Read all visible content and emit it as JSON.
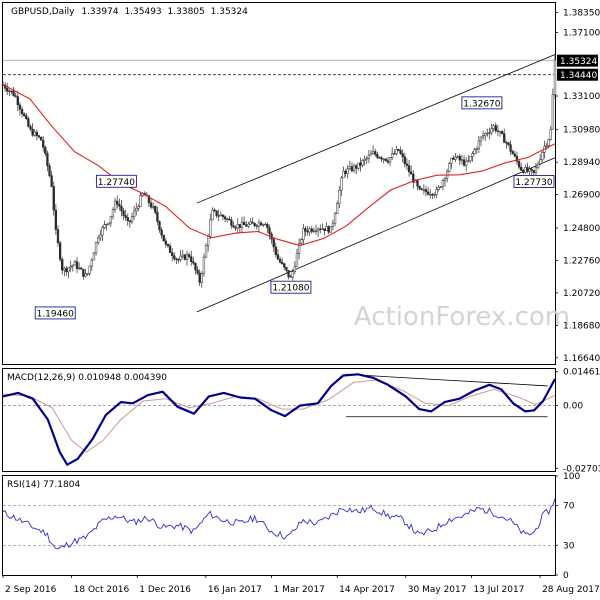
{
  "chart_data": {
    "type": "candlestick",
    "main": {
      "header": {
        "symbol": "GBPUSD",
        "timeframe": "Daily",
        "open": "1.33974",
        "high": "1.35493",
        "low": "1.33805",
        "close": "1.35324"
      },
      "y_range": [
        1.1625,
        1.3895
      ],
      "y_ticks": [
        "1.38350",
        "1.37100",
        "1.33100",
        "1.30980",
        "1.28940",
        "1.26900",
        "1.24800",
        "1.22760",
        "1.20720",
        "1.18680",
        "1.16640"
      ],
      "price_tags": [
        {
          "value": "1.35324",
          "price": 1.35324
        },
        {
          "value": "1.34440",
          "price": 1.3444
        }
      ],
      "annotations": [
        {
          "text": "1.27740",
          "date": "2016-11-17",
          "price": 1.2774
        },
        {
          "text": "1.19460",
          "date": "2016-10-07",
          "price": 1.1946
        },
        {
          "text": "1.21080",
          "date": "2017-03-14",
          "price": 1.2108
        },
        {
          "text": "1.32670",
          "date": "2017-07-20",
          "price": 1.3267
        },
        {
          "text": "1.27730",
          "date": "2017-08-24",
          "price": 1.2773
        }
      ],
      "horizontal_lines": [
        1.3444,
        1.3535
      ],
      "channel": {
        "upper": [
          [
            "2017-01-10",
            1.2637
          ],
          [
            "2017-09-07",
            1.3571
          ]
        ],
        "lower": [
          [
            "2017-01-10",
            1.1953
          ],
          [
            "2017-09-07",
            1.2922
          ]
        ]
      },
      "moving_average": [
        [
          "2016-09-02",
          1.3382
        ],
        [
          "2016-09-20",
          1.3292
        ],
        [
          "2016-10-05",
          1.3117
        ],
        [
          "2016-10-20",
          1.296
        ],
        [
          "2016-11-05",
          1.2872
        ],
        [
          "2016-11-20",
          1.2763
        ],
        [
          "2016-12-05",
          1.2695
        ],
        [
          "2016-12-20",
          1.2616
        ],
        [
          "2017-01-05",
          1.2479
        ],
        [
          "2017-01-20",
          1.2419
        ],
        [
          "2017-02-05",
          1.2448
        ],
        [
          "2017-02-20",
          1.2458
        ],
        [
          "2017-03-05",
          1.241
        ],
        [
          "2017-03-20",
          1.237
        ],
        [
          "2017-04-05",
          1.2415
        ],
        [
          "2017-04-20",
          1.2492
        ],
        [
          "2017-05-05",
          1.261
        ],
        [
          "2017-05-20",
          1.272
        ],
        [
          "2017-06-05",
          1.2779
        ],
        [
          "2017-06-20",
          1.2812
        ],
        [
          "2017-07-05",
          1.2815
        ],
        [
          "2017-07-20",
          1.2838
        ],
        [
          "2017-08-05",
          1.2891
        ],
        [
          "2017-08-20",
          1.2924
        ],
        [
          "2017-09-07",
          1.301
        ]
      ],
      "price_path": [
        [
          "2016-09-02",
          1.338
        ],
        [
          "2016-09-10",
          1.3315
        ],
        [
          "2016-09-20",
          1.3095
        ],
        [
          "2016-09-28",
          1.303
        ],
        [
          "2016-10-05",
          1.2735
        ],
        [
          "2016-10-07",
          1.2475
        ],
        [
          "2016-10-12",
          1.221
        ],
        [
          "2016-10-20",
          1.2255
        ],
        [
          "2016-10-28",
          1.217
        ],
        [
          "2016-11-05",
          1.244
        ],
        [
          "2016-11-12",
          1.253
        ],
        [
          "2016-11-17",
          1.2655
        ],
        [
          "2016-11-25",
          1.25
        ],
        [
          "2016-12-05",
          1.27
        ],
        [
          "2016-12-12",
          1.2595
        ],
        [
          "2016-12-20",
          1.237
        ],
        [
          "2016-12-28",
          1.228
        ],
        [
          "2017-01-05",
          1.231
        ],
        [
          "2017-01-12",
          1.214
        ],
        [
          "2017-01-20",
          1.258
        ],
        [
          "2017-01-28",
          1.255
        ],
        [
          "2017-02-05",
          1.2495
        ],
        [
          "2017-02-15",
          1.25
        ],
        [
          "2017-02-25",
          1.252
        ],
        [
          "2017-03-05",
          1.229
        ],
        [
          "2017-03-14",
          1.216
        ],
        [
          "2017-03-22",
          1.246
        ],
        [
          "2017-04-01",
          1.2485
        ],
        [
          "2017-04-10",
          1.247
        ],
        [
          "2017-04-18",
          1.283
        ],
        [
          "2017-04-28",
          1.287
        ],
        [
          "2017-05-08",
          1.295
        ],
        [
          "2017-05-18",
          1.291
        ],
        [
          "2017-05-25",
          1.297
        ],
        [
          "2017-06-08",
          1.271
        ],
        [
          "2017-06-20",
          1.2705
        ],
        [
          "2017-07-01",
          1.293
        ],
        [
          "2017-07-10",
          1.288
        ],
        [
          "2017-07-20",
          1.3055
        ],
        [
          "2017-07-28",
          1.312
        ],
        [
          "2017-08-05",
          1.3025
        ],
        [
          "2017-08-15",
          1.2855
        ],
        [
          "2017-08-24",
          1.282
        ],
        [
          "2017-08-30",
          1.2975
        ],
        [
          "2017-09-04",
          1.307
        ],
        [
          "2017-09-07",
          1.3532
        ]
      ]
    },
    "macd": {
      "label": "MACD(12,26,9) 0.010948 0.004390",
      "y_ticks": [
        "0.014614",
        "0.00",
        "-0.027031"
      ],
      "y_range": [
        -0.0282,
        0.0158
      ],
      "macd_line": [
        [
          "2016-09-02",
          0.004
        ],
        [
          "2016-09-12",
          0.0055
        ],
        [
          "2016-09-22",
          0.003
        ],
        [
          "2016-10-02",
          -0.006
        ],
        [
          "2016-10-10",
          -0.02
        ],
        [
          "2016-10-15",
          -0.0255
        ],
        [
          "2016-10-22",
          -0.023
        ],
        [
          "2016-11-01",
          -0.0145
        ],
        [
          "2016-11-10",
          -0.004
        ],
        [
          "2016-11-20",
          0.0015
        ],
        [
          "2016-11-28",
          0.001
        ],
        [
          "2016-12-08",
          0.0045
        ],
        [
          "2016-12-18",
          0.006
        ],
        [
          "2016-12-28",
          -0.0005
        ],
        [
          "2017-01-08",
          -0.0035
        ],
        [
          "2017-01-18",
          0.004
        ],
        [
          "2017-01-28",
          0.0055
        ],
        [
          "2017-02-08",
          0.0035
        ],
        [
          "2017-02-18",
          0.003
        ],
        [
          "2017-03-01",
          -0.002
        ],
        [
          "2017-03-10",
          -0.0045
        ],
        [
          "2017-03-20",
          0.0
        ],
        [
          "2017-04-01",
          0.001
        ],
        [
          "2017-04-10",
          0.0085
        ],
        [
          "2017-04-18",
          0.013
        ],
        [
          "2017-04-28",
          0.0135
        ],
        [
          "2017-05-08",
          0.012
        ],
        [
          "2017-05-18",
          0.009
        ],
        [
          "2017-05-30",
          0.004
        ],
        [
          "2017-06-08",
          -0.0015
        ],
        [
          "2017-06-16",
          -0.0025
        ],
        [
          "2017-06-25",
          0.0015
        ],
        [
          "2017-07-05",
          0.003
        ],
        [
          "2017-07-15",
          0.0065
        ],
        [
          "2017-07-25",
          0.009
        ],
        [
          "2017-08-02",
          0.007
        ],
        [
          "2017-08-10",
          0.001
        ],
        [
          "2017-08-18",
          -0.0025
        ],
        [
          "2017-08-24",
          -0.002
        ],
        [
          "2017-08-30",
          0.002
        ],
        [
          "2017-09-07",
          0.0115
        ]
      ],
      "signal_line": [
        [
          "2016-09-02",
          0.005
        ],
        [
          "2016-09-20",
          0.004
        ],
        [
          "2016-10-05",
          -0.001
        ],
        [
          "2016-10-18",
          -0.015
        ],
        [
          "2016-10-28",
          -0.02
        ],
        [
          "2016-11-08",
          -0.015
        ],
        [
          "2016-11-20",
          -0.006
        ],
        [
          "2016-12-05",
          0.002
        ],
        [
          "2016-12-20",
          0.003
        ],
        [
          "2017-01-05",
          -0.001
        ],
        [
          "2017-01-20",
          0.001
        ],
        [
          "2017-02-05",
          0.004
        ],
        [
          "2017-02-20",
          0.003
        ],
        [
          "2017-03-08",
          -0.0015
        ],
        [
          "2017-03-22",
          -0.0015
        ],
        [
          "2017-04-08",
          0.0025
        ],
        [
          "2017-04-25",
          0.01
        ],
        [
          "2017-05-10",
          0.011
        ],
        [
          "2017-05-28",
          0.0065
        ],
        [
          "2017-06-12",
          0.001
        ],
        [
          "2017-06-28",
          0.0
        ],
        [
          "2017-07-12",
          0.004
        ],
        [
          "2017-07-28",
          0.007
        ],
        [
          "2017-08-12",
          0.004
        ],
        [
          "2017-08-25",
          0.0005
        ],
        [
          "2017-09-07",
          0.0044
        ]
      ],
      "trendlines": [
        [
          [
            "2017-04-20",
            0.0135
          ],
          [
            "2017-09-02",
            0.0085
          ]
        ],
        [
          [
            "2017-04-20",
            -0.0048
          ],
          [
            "2017-09-02",
            -0.0048
          ]
        ]
      ]
    },
    "rsi": {
      "label": "RSI(14) 77.1804",
      "y_ticks": [
        "100",
        "70",
        "30",
        "0"
      ],
      "y_range": [
        0,
        100
      ],
      "levels": [
        70,
        30
      ],
      "values": [
        [
          "2016-09-02",
          63
        ],
        [
          "2016-09-10",
          58
        ],
        [
          "2016-09-20",
          50
        ],
        [
          "2016-10-01",
          42
        ],
        [
          "2016-10-08",
          25
        ],
        [
          "2016-10-18",
          33
        ],
        [
          "2016-10-28",
          38
        ],
        [
          "2016-11-08",
          55
        ],
        [
          "2016-11-17",
          60
        ],
        [
          "2016-11-28",
          53
        ],
        [
          "2016-12-08",
          58
        ],
        [
          "2016-12-18",
          48
        ],
        [
          "2016-12-28",
          50
        ],
        [
          "2017-01-08",
          44
        ],
        [
          "2017-01-18",
          62
        ],
        [
          "2017-01-28",
          55
        ],
        [
          "2017-02-08",
          52
        ],
        [
          "2017-02-18",
          58
        ],
        [
          "2017-03-01",
          44
        ],
        [
          "2017-03-12",
          38
        ],
        [
          "2017-03-22",
          55
        ],
        [
          "2017-04-01",
          52
        ],
        [
          "2017-04-10",
          60
        ],
        [
          "2017-04-18",
          68
        ],
        [
          "2017-04-28",
          64
        ],
        [
          "2017-05-08",
          68
        ],
        [
          "2017-05-18",
          60
        ],
        [
          "2017-05-28",
          56
        ],
        [
          "2017-06-08",
          40
        ],
        [
          "2017-06-18",
          46
        ],
        [
          "2017-06-28",
          56
        ],
        [
          "2017-07-08",
          60
        ],
        [
          "2017-07-18",
          67
        ],
        [
          "2017-07-28",
          63
        ],
        [
          "2017-08-08",
          55
        ],
        [
          "2017-08-18",
          40
        ],
        [
          "2017-08-24",
          43
        ],
        [
          "2017-08-30",
          60
        ],
        [
          "2017-09-04",
          66
        ],
        [
          "2017-09-07",
          77
        ]
      ]
    },
    "x_axis": {
      "start_date": "2016-09-02",
      "end_date": "2017-09-07",
      "tick_labels": [
        {
          "label": "2 Sep 2016",
          "date": "2016-09-02"
        },
        {
          "label": "18 Oct 2016",
          "date": "2016-10-18"
        },
        {
          "label": "1 Dec 2016",
          "date": "2016-12-01"
        },
        {
          "label": "16 Jan 2017",
          "date": "2017-01-16"
        },
        {
          "label": "1 Mar 2017",
          "date": "2017-03-01"
        },
        {
          "label": "14 Apr 2017",
          "date": "2017-04-14"
        },
        {
          "label": "30 May 2017",
          "date": "2017-05-30"
        },
        {
          "label": "13 Jul 2017",
          "date": "2017-07-13"
        },
        {
          "label": "28 Aug 2017",
          "date": "2017-08-28"
        }
      ]
    },
    "watermark": "ActionForex.com",
    "colors": {
      "candles": "#2b2b2b",
      "moving_average": "#e02020",
      "channel": "#000000",
      "macd_line": "#00008b",
      "signal_line": "#c89a9a",
      "rsi_line": "#2f2fd0",
      "price_tag_bg": "#000000",
      "annotation_border": "#000080"
    }
  }
}
